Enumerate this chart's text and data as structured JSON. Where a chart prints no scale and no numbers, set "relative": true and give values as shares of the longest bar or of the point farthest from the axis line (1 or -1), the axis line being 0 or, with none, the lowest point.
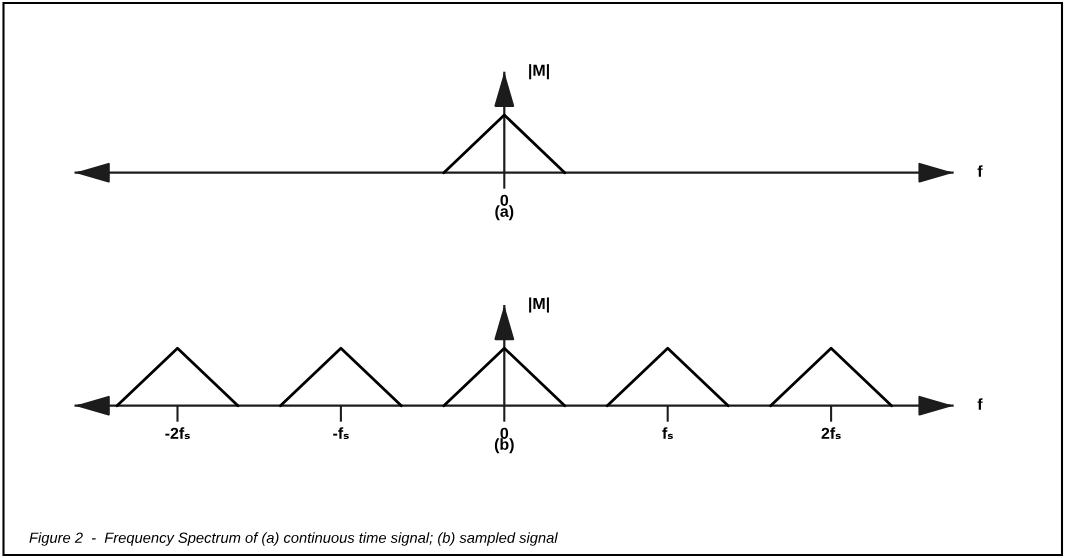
{
  "chart_data": [
    {
      "type": "line",
      "title": "(a)",
      "xlabel": "f",
      "ylabel": "|M|",
      "relative": true,
      "line_style": "solid",
      "tick_labels": false,
      "xlim": [
        -2.63,
        2.75
      ],
      "xticks": [
        {
          "value": 0,
          "label": null
        }
      ],
      "series": [
        {
          "color": "#000000",
          "x": [
            -0.37,
            0,
            0.37
          ],
          "values": [
            0,
            1,
            0
          ]
        }
      ],
      "annotations": [
        "0"
      ]
    },
    {
      "type": "line",
      "title": "(b)",
      "xlabel": "f",
      "ylabel": "|M|",
      "relative": true,
      "line_style": "solid",
      "tick_labels": "x",
      "xlim": [
        -2.63,
        2.75
      ],
      "xticks": [
        {
          "value": -2,
          "label": "-2fₛ"
        },
        {
          "value": -1,
          "label": "-fₛ"
        },
        0,
        {
          "value": 1,
          "label": "fₛ"
        },
        {
          "value": 2,
          "label": "2fₛ"
        }
      ],
      "series": [
        {
          "color": "#000000",
          "x": [
            -2.37,
            -2,
            -1.63
          ],
          "values": [
            0,
            1,
            0
          ]
        },
        {
          "color": "#000000",
          "x": [
            -1.37,
            -1,
            -0.63
          ],
          "values": [
            0,
            1,
            0
          ]
        },
        {
          "color": "#000000",
          "x": [
            -0.37,
            0,
            0.37
          ],
          "values": [
            0,
            1,
            0
          ]
        },
        {
          "color": "#000000",
          "x": [
            0.63,
            1,
            1.37
          ],
          "values": [
            0,
            1,
            0
          ]
        },
        {
          "color": "#000000",
          "x": [
            1.63,
            2,
            2.37
          ],
          "values": [
            0,
            1,
            0
          ]
        }
      ],
      "annotations": [
        "Figure 2  -  Frequency Spectrum of (a) continuous time signal; (b) sampled signal"
      ]
    }
  ]
}
